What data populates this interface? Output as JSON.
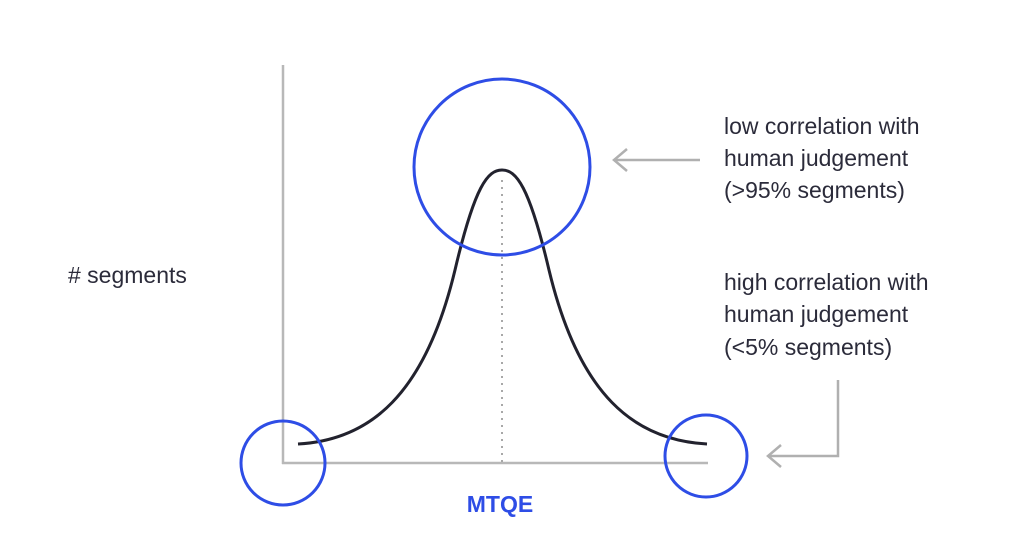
{
  "y_axis_label": "# segments",
  "x_axis_label": "MTQE",
  "annotations": [
    {
      "lines": [
        "low correlation with",
        "human judgement",
        "(>95% segments)"
      ]
    },
    {
      "lines": [
        "high correlation with",
        "human judgement",
        "(<5% segments)"
      ]
    }
  ]
}
